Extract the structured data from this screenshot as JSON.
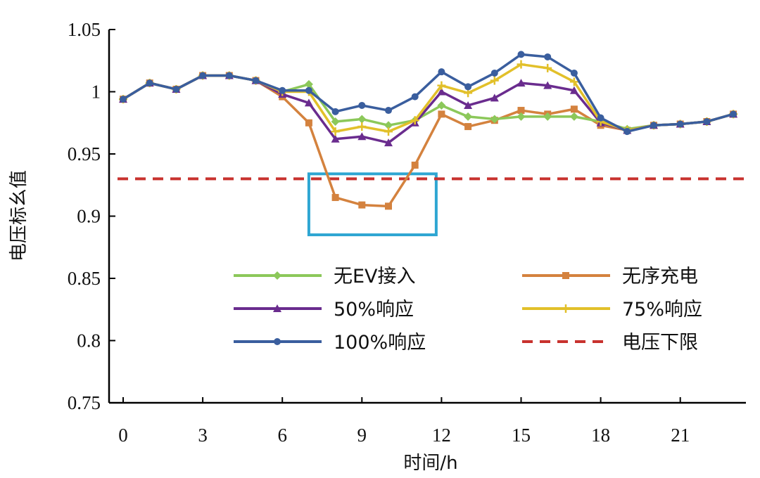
{
  "chart_data": {
    "type": "line",
    "xlabel": "时间/h",
    "ylabel": "电压标幺值",
    "xlim": [
      0,
      24
    ],
    "ylim": [
      0.75,
      1.05
    ],
    "xticks": [
      0,
      3,
      6,
      9,
      12,
      15,
      18,
      21
    ],
    "yticks": [
      0.75,
      0.8,
      0.85,
      0.9,
      0.95,
      1,
      1.05
    ],
    "ytick_labels": [
      "0.75",
      "0.8",
      "0.85",
      "0.9",
      "0.95",
      "1",
      "1.05"
    ],
    "x": [
      0,
      1,
      2,
      3,
      4,
      5,
      6,
      7,
      8,
      9,
      10,
      11,
      12,
      13,
      14,
      15,
      16,
      17,
      18,
      19,
      20,
      21,
      22,
      23
    ],
    "grid": false,
    "legend_position": "center-bottom, two columns",
    "series": [
      {
        "name": "无EV接入",
        "color": "#8cc85a",
        "marker": "diamond",
        "values": [
          0.994,
          1.007,
          1.002,
          1.013,
          1.013,
          1.009,
          1.0,
          1.006,
          0.976,
          0.978,
          0.973,
          0.977,
          0.989,
          0.98,
          0.978,
          0.98,
          0.98,
          0.98,
          0.976,
          0.97,
          0.973,
          0.974,
          0.976,
          0.982
        ]
      },
      {
        "name": "无序充电",
        "color": "#d4823e",
        "marker": "square",
        "values": [
          0.994,
          1.007,
          1.002,
          1.013,
          1.013,
          1.009,
          0.996,
          0.975,
          0.915,
          0.909,
          0.908,
          0.941,
          0.982,
          0.972,
          0.977,
          0.985,
          0.982,
          0.986,
          0.973,
          0.969,
          0.973,
          0.974,
          0.976,
          0.982
        ]
      },
      {
        "name": "50%响应",
        "color": "#6a2c8e",
        "marker": "triangle",
        "values": [
          0.994,
          1.007,
          1.002,
          1.013,
          1.013,
          1.009,
          0.998,
          0.991,
          0.962,
          0.964,
          0.959,
          0.975,
          1.0,
          0.989,
          0.995,
          1.007,
          1.005,
          1.001,
          0.975,
          0.969,
          0.973,
          0.974,
          0.976,
          0.982
        ]
      },
      {
        "name": "75%响应",
        "color": "#e2c02a",
        "marker": "star",
        "values": [
          0.994,
          1.007,
          1.002,
          1.013,
          1.013,
          1.009,
          1.0,
          1.0,
          0.968,
          0.972,
          0.968,
          0.977,
          1.005,
          0.999,
          1.009,
          1.022,
          1.019,
          1.008,
          0.976,
          0.969,
          0.973,
          0.974,
          0.976,
          0.982
        ]
      },
      {
        "name": "100%响应",
        "color": "#3a5e9e",
        "marker": "circle",
        "values": [
          0.994,
          1.007,
          1.002,
          1.013,
          1.013,
          1.009,
          1.001,
          1.001,
          0.984,
          0.989,
          0.985,
          0.996,
          1.016,
          1.004,
          1.015,
          1.03,
          1.028,
          1.015,
          0.979,
          0.968,
          0.973,
          0.974,
          0.976,
          0.982
        ]
      },
      {
        "name": "电压下限",
        "color": "#c8322e",
        "marker": "none",
        "dashed": true,
        "values": [
          0.93,
          0.93,
          0.93,
          0.93,
          0.93,
          0.93,
          0.93,
          0.93,
          0.93,
          0.93,
          0.93,
          0.93,
          0.93,
          0.93,
          0.93,
          0.93,
          0.93,
          0.93,
          0.93,
          0.93,
          0.93,
          0.93,
          0.93,
          0.93
        ]
      }
    ],
    "annotations": [
      {
        "type": "rectangle",
        "color": "#2ea6d2",
        "x_range": [
          7.0,
          11.8
        ],
        "y_range": [
          0.885,
          0.934
        ]
      }
    ]
  }
}
